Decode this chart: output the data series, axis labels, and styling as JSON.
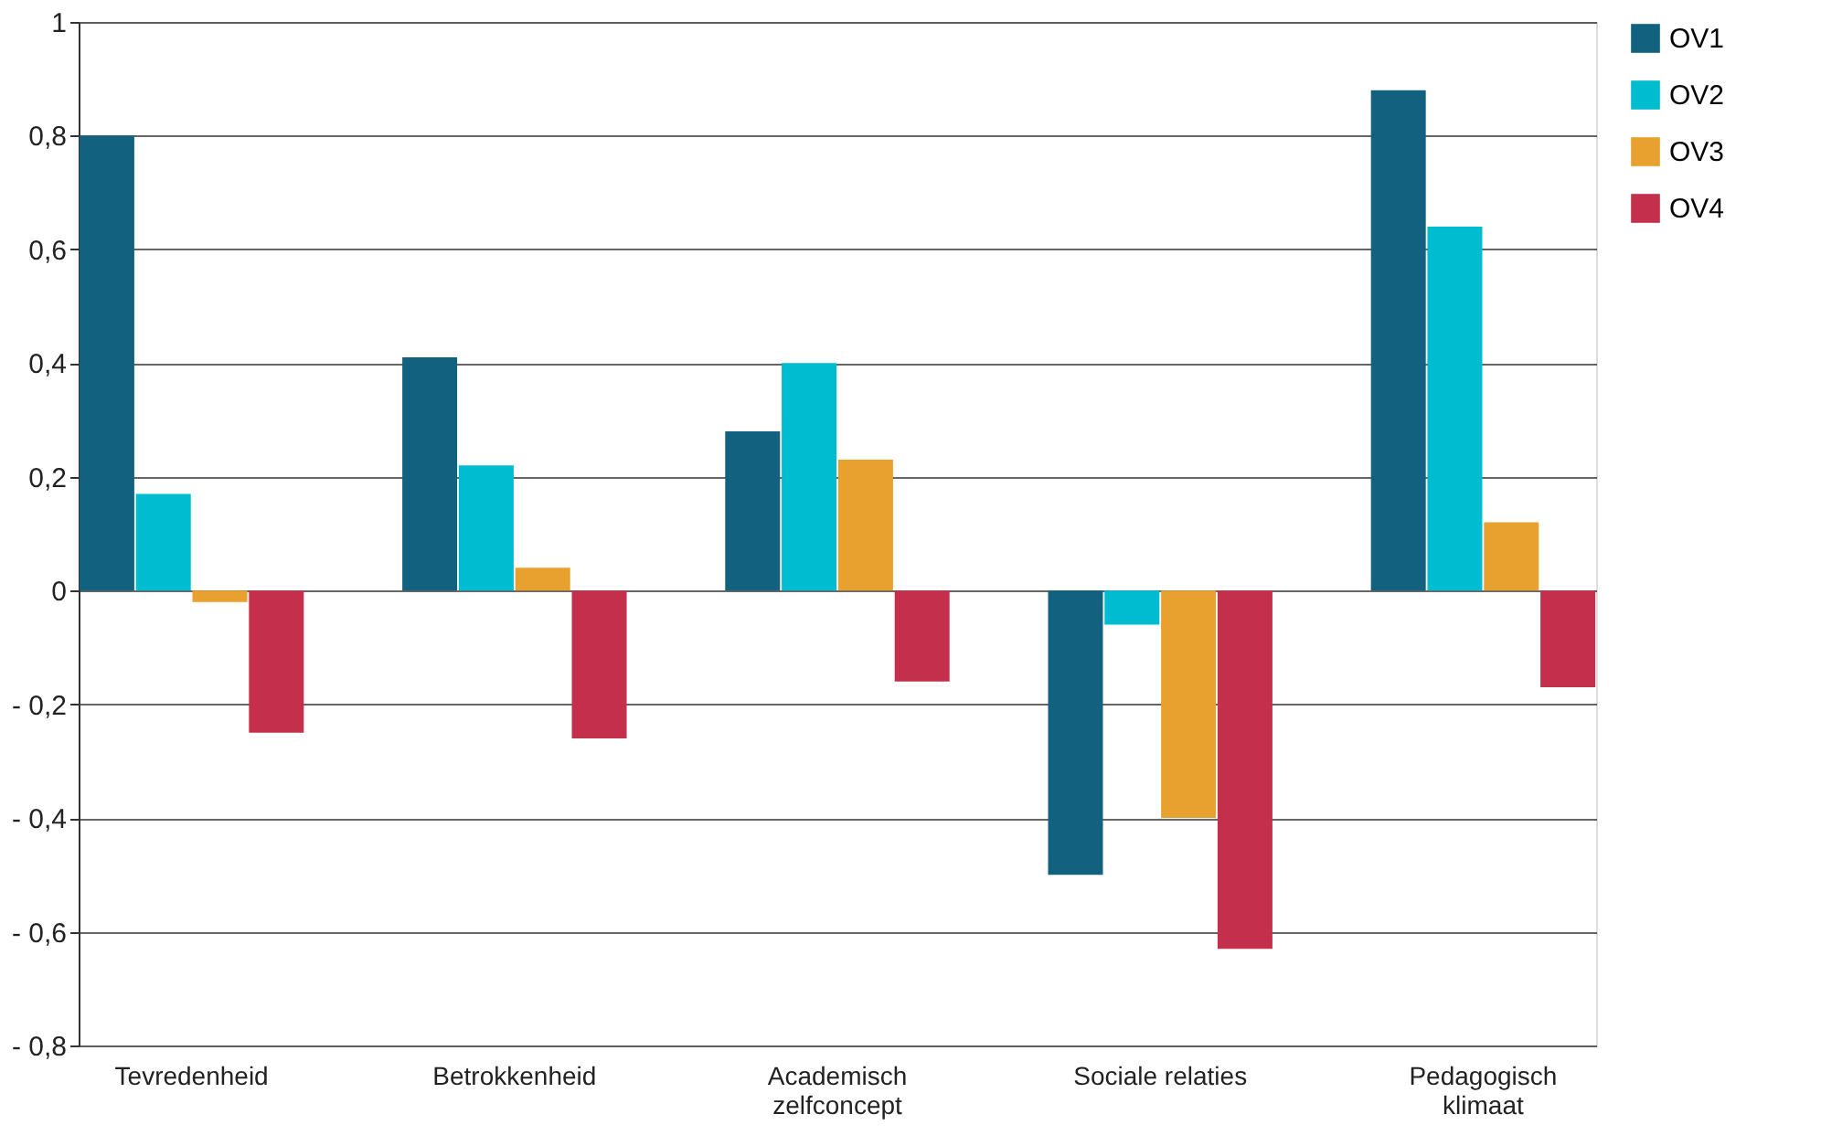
{
  "chart_data": {
    "type": "bar",
    "categories": [
      "Tevredenheid",
      "Betrokkenheid",
      "Academisch zelfconcept",
      "Sociale relaties",
      "Pedagogisch klimaat"
    ],
    "series": [
      {
        "name": "OV1",
        "color": "#12627f",
        "values": [
          0.8,
          0.41,
          0.28,
          -0.5,
          0.88
        ]
      },
      {
        "name": "OV2",
        "color": "#00bcd0",
        "values": [
          0.17,
          0.22,
          0.4,
          -0.06,
          0.64
        ]
      },
      {
        "name": "OV3",
        "color": "#e8a02e",
        "values": [
          -0.02,
          0.04,
          0.23,
          -0.4,
          0.12
        ]
      },
      {
        "name": "OV4",
        "color": "#c4304b",
        "values": [
          -0.25,
          -0.26,
          -0.16,
          -0.63,
          -0.17
        ]
      }
    ],
    "ylim": [
      -0.8,
      1
    ],
    "yticks": [
      {
        "value": -0.8,
        "label": "- 0,8"
      },
      {
        "value": -0.6,
        "label": "- 0,6"
      },
      {
        "value": -0.4,
        "label": "- 0,4"
      },
      {
        "value": -0.2,
        "label": "- 0,2"
      },
      0,
      {
        "value": 0.2,
        "label": "0,2"
      },
      {
        "value": 0.4,
        "label": "0,4"
      },
      {
        "value": 0.6,
        "label": "0,6"
      },
      {
        "value": 0.8,
        "label": "0,8"
      },
      1
    ],
    "grid": "y",
    "legend": "right"
  }
}
